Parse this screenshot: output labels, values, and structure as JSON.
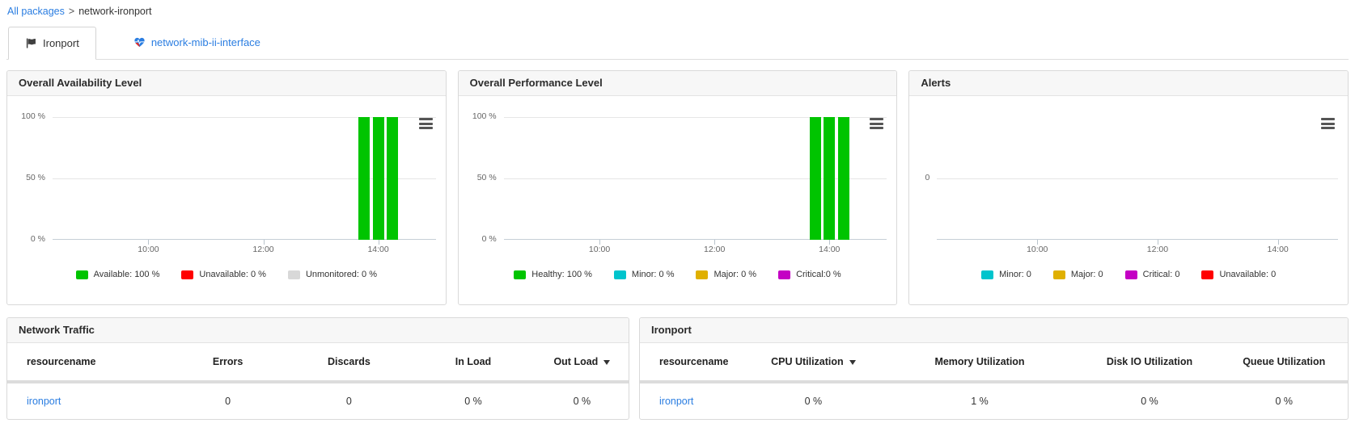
{
  "breadcrumb": {
    "link": "All packages",
    "separator": ">",
    "current": "network-ironport"
  },
  "tabs": [
    {
      "label": "Ironport",
      "icon": "flag-icon",
      "active": true
    },
    {
      "label": "network-mib-ii-interface",
      "icon": "heart-pulse-icon",
      "active": false
    }
  ],
  "colors": {
    "available_green": "#00c400",
    "unavailable_red": "#ff0000",
    "unmonitored_gray": "#d8d8d8",
    "minor_cyan": "#00c4cd",
    "major_gold": "#e0b000",
    "critical_magenta": "#c400c4",
    "link_blue": "#2a7de1"
  },
  "chart_data": [
    {
      "type": "bar",
      "title": "Overall Availability Level",
      "series_label": "Available",
      "ylim": [
        0,
        100
      ],
      "y_ticks": [
        {
          "label": "100 %",
          "value": 100
        },
        {
          "label": "50 %",
          "value": 50
        },
        {
          "label": "0 %",
          "value": 0
        }
      ],
      "x_axis": {
        "start": "08:20",
        "end": "15:00"
      },
      "x_ticks": [
        "10:00",
        "12:00",
        "14:00"
      ],
      "bar_color": "#00c400",
      "bars": [
        {
          "x": "13:45",
          "value": 100
        },
        {
          "x": "14:00",
          "value": 100
        },
        {
          "x": "14:15",
          "value": 100
        }
      ],
      "legend": [
        {
          "label": "Available: 100 %",
          "color": "#00c400"
        },
        {
          "label": "Unavailable: 0 %",
          "color": "#ff0000"
        },
        {
          "label": "Unmonitored: 0 %",
          "color": "#d8d8d8"
        }
      ]
    },
    {
      "type": "bar",
      "title": "Overall Performance Level",
      "series_label": "Healthy",
      "ylim": [
        0,
        100
      ],
      "y_ticks": [
        {
          "label": "100 %",
          "value": 100
        },
        {
          "label": "50 %",
          "value": 50
        },
        {
          "label": "0 %",
          "value": 0
        }
      ],
      "x_axis": {
        "start": "08:20",
        "end": "15:00"
      },
      "x_ticks": [
        "10:00",
        "12:00",
        "14:00"
      ],
      "bar_color": "#00c400",
      "bars": [
        {
          "x": "13:45",
          "value": 100
        },
        {
          "x": "14:00",
          "value": 100
        },
        {
          "x": "14:15",
          "value": 100
        }
      ],
      "legend": [
        {
          "label": "Healthy: 100 %",
          "color": "#00c400"
        },
        {
          "label": "Minor: 0 %",
          "color": "#00c4cd"
        },
        {
          "label": "Major: 0 %",
          "color": "#e0b000"
        },
        {
          "label": "Critical:0 %",
          "color": "#c400c4"
        }
      ]
    },
    {
      "type": "bar",
      "title": "Alerts",
      "series_label": "Alerts",
      "ylim": [
        -1,
        1
      ],
      "y_ticks": [
        {
          "label": "0",
          "value": 0
        }
      ],
      "x_axis": {
        "start": "08:20",
        "end": "15:00"
      },
      "x_ticks": [
        "10:00",
        "12:00",
        "14:00"
      ],
      "bar_color": "#00c400",
      "bars": [],
      "legend": [
        {
          "label": "Minor: 0",
          "color": "#00c4cd"
        },
        {
          "label": "Major: 0",
          "color": "#e0b000"
        },
        {
          "label": "Critical: 0",
          "color": "#c400c4"
        },
        {
          "label": "Unavailable: 0",
          "color": "#ff0000"
        }
      ]
    }
  ],
  "tables": [
    {
      "title": "Network Traffic",
      "columns": [
        {
          "label": "resourcename"
        },
        {
          "label": "Errors"
        },
        {
          "label": "Discards"
        },
        {
          "label": "In Load"
        },
        {
          "label": "Out Load",
          "sort": "desc"
        }
      ],
      "rows": [
        [
          {
            "text": "ironport",
            "link": true
          },
          {
            "text": "0"
          },
          {
            "text": "0"
          },
          {
            "text": "0 %"
          },
          {
            "text": "0 %"
          }
        ]
      ]
    },
    {
      "title": "Ironport",
      "columns": [
        {
          "label": "resourcename"
        },
        {
          "label": "CPU Utilization",
          "sort": "desc"
        },
        {
          "label": "Memory Utilization"
        },
        {
          "label": "Disk IO Utilization"
        },
        {
          "label": "Queue Utilization"
        }
      ],
      "rows": [
        [
          {
            "text": "ironport",
            "link": true
          },
          {
            "text": "0 %"
          },
          {
            "text": "1 %"
          },
          {
            "text": "0 %"
          },
          {
            "text": "0 %"
          }
        ]
      ]
    }
  ]
}
